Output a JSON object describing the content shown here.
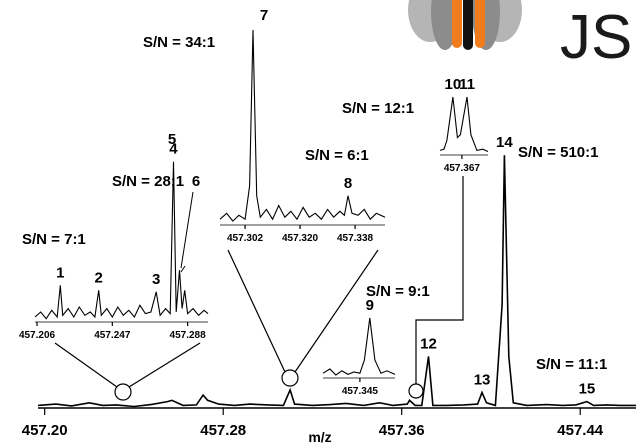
{
  "logo": {
    "text": "JS"
  },
  "chart_data": [
    {
      "type": "line",
      "x_label": "m/z",
      "xlim": [
        457.197,
        457.465
      ],
      "ylim": [
        0,
        100
      ],
      "color": "#000000",
      "xticks": [
        {
          "value": 457.2,
          "label": "457.20"
        },
        457.28,
        457.36,
        457.44
      ],
      "x": [
        457.197,
        457.205,
        457.212,
        457.22,
        457.226,
        457.232,
        457.24,
        457.248,
        457.255,
        457.257,
        457.262,
        457.268,
        457.271,
        457.273,
        457.278,
        457.285,
        457.292,
        457.3,
        457.307,
        457.31,
        457.312,
        457.32,
        457.328,
        457.335,
        457.343,
        457.35,
        457.356,
        457.3625,
        457.3635,
        457.366,
        457.369,
        457.372,
        457.374,
        457.38,
        457.388,
        457.394,
        457.396,
        457.398,
        457.402,
        457.405,
        457.406,
        457.408,
        457.41,
        457.416,
        457.425,
        457.432,
        457.438,
        457.443,
        457.446,
        457.452,
        457.458,
        457.465
      ],
      "values": [
        1,
        1.5,
        0.8,
        2,
        1,
        1.2,
        0.6,
        1.4,
        2.5,
        3,
        1,
        1.2,
        5,
        3,
        1.5,
        1,
        1.5,
        1.2,
        1,
        7,
        1.5,
        1,
        1.3,
        1.8,
        1,
        2,
        1,
        1.5,
        3,
        1,
        1,
        20,
        1,
        1,
        1.2,
        1.5,
        6,
        2,
        1,
        40,
        98,
        20,
        2,
        1,
        1.3,
        1,
        1.2,
        2.5,
        1,
        1.2,
        1,
        1
      ],
      "peak_labels": [
        {
          "label": "12",
          "x": 457.372
        },
        {
          "label": "13",
          "x": 457.396
        },
        {
          "label": "14",
          "x": 457.406
        },
        {
          "label": "15",
          "x": 457.443
        }
      ],
      "annotations": [
        "S/N = 510:1",
        "S/N = 11:1",
        "S/N = 9:1"
      ]
    },
    {
      "type": "line",
      "xlim": [
        457.2049,
        457.2991
      ],
      "ylim": [
        0,
        100
      ],
      "color": "#000000",
      "xticks": [
        457.206,
        457.247,
        457.288
      ],
      "x": [
        457.2049,
        457.208,
        457.211,
        457.214,
        457.217,
        457.2187,
        457.22,
        457.223,
        457.226,
        457.229,
        457.232,
        457.235,
        457.2375,
        457.2396,
        457.241,
        457.244,
        457.247,
        457.25,
        457.253,
        457.256,
        457.259,
        457.262,
        457.265,
        457.268,
        457.2709,
        457.273,
        457.276,
        457.2785,
        457.2803,
        457.2818,
        457.2836,
        457.285,
        457.2864,
        457.288,
        457.291,
        457.294,
        457.297,
        457.2991
      ],
      "values": [
        3,
        6,
        2,
        7,
        3,
        22,
        4,
        8,
        3,
        9,
        4,
        6,
        3,
        19,
        4,
        8,
        3,
        9,
        4,
        7,
        3,
        10,
        5,
        6,
        18,
        4,
        8,
        5,
        96,
        6,
        31,
        8,
        19,
        5,
        8,
        4,
        7,
        5
      ],
      "peak_labels": [
        {
          "label": "1",
          "x": 457.2187
        },
        {
          "label": "2",
          "x": 457.2396
        },
        {
          "label": "3",
          "x": 457.2709
        },
        {
          "label": "4",
          "x": 457.2803
        },
        {
          "label": "5",
          "x": 457.2836
        },
        {
          "label": "6",
          "x": 457.2864
        }
      ],
      "annotations": [
        "S/N = 7:1",
        "S/N = 28:1"
      ]
    },
    {
      "type": "line",
      "xlim": [
        457.2938,
        457.3478
      ],
      "ylim": [
        0,
        100
      ],
      "color": "#000000",
      "xticks": [
        457.302,
        {
          "value": 457.32,
          "label": "457.320"
        },
        457.338
      ],
      "x": [
        457.2938,
        457.296,
        457.298,
        457.3,
        457.302,
        457.3035,
        457.3046,
        457.3058,
        457.307,
        457.309,
        457.311,
        457.313,
        457.315,
        457.317,
        457.319,
        457.321,
        457.323,
        457.325,
        457.327,
        457.329,
        457.331,
        457.333,
        457.3345,
        457.3357,
        457.337,
        457.339,
        457.341,
        457.343,
        457.345,
        457.3478
      ],
      "values": [
        3,
        6,
        2,
        5,
        3,
        20,
        100,
        15,
        4,
        8,
        3,
        10,
        4,
        7,
        3,
        9,
        4,
        6,
        3,
        8,
        4,
        7,
        5,
        15,
        6,
        5,
        8,
        3,
        6,
        4
      ],
      "peak_labels": [
        {
          "label": "7",
          "x": 457.3046
        },
        {
          "label": "8",
          "x": 457.3357
        }
      ],
      "annotations": [
        "S/N = 34:1",
        "S/N = 6:1"
      ]
    },
    {
      "type": "line",
      "xlim": [
        457.3327,
        457.3567
      ],
      "ylim": [
        0,
        100
      ],
      "color": "#000000",
      "xticks": [
        457.345
      ],
      "x": [
        457.3327,
        457.335,
        457.337,
        457.339,
        457.341,
        457.343,
        457.345,
        457.3465,
        457.3483,
        457.35,
        457.352,
        457.354,
        457.3567
      ],
      "values": [
        8,
        15,
        5,
        12,
        6,
        10,
        8,
        30,
        100,
        30,
        8,
        12,
        6
      ],
      "peak_labels": [
        {
          "label": "9",
          "x": 457.3483
        }
      ],
      "annotations": []
    },
    {
      "type": "line",
      "xlim": [
        457.3597,
        457.3757
      ],
      "ylim": [
        0,
        100
      ],
      "color": "#000000",
      "xticks": [
        457.367
      ],
      "x": [
        457.3597,
        457.361,
        457.362,
        457.364,
        457.3655,
        457.3665,
        457.3687,
        457.37,
        457.372,
        457.374,
        457.3757
      ],
      "values": [
        8,
        10,
        25,
        100,
        30,
        35,
        100,
        35,
        8,
        10,
        6
      ],
      "peak_labels": [
        {
          "label": "10",
          "x": 457.364
        },
        {
          "label": "11",
          "x": 457.3687
        }
      ],
      "annotations": [
        "S/N = 12:1"
      ]
    }
  ]
}
